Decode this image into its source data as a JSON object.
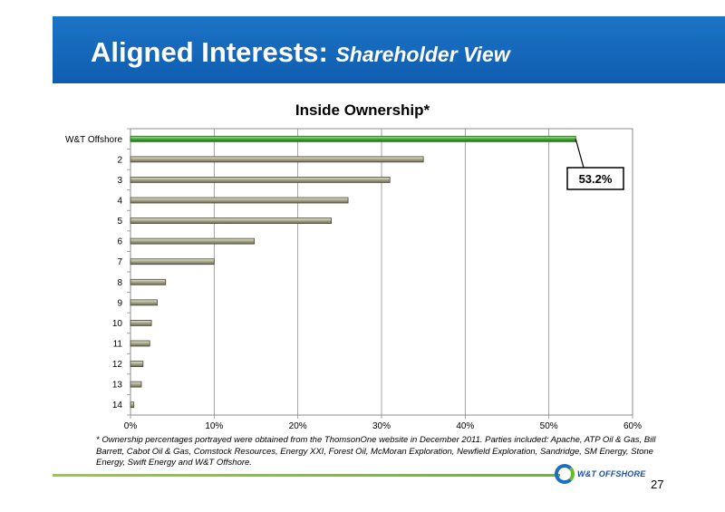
{
  "slide": {
    "title_main": "Aligned Interests:",
    "title_sub": "Shareholder View",
    "footnote": "* Ownership percentages portrayed were obtained from the ThomsonOne website in December 2011. Parties included: Apache, ATP Oil & Gas, Bill Barrett, Cabot Oil & Gas, Comstock Resources, Energy XXI, Forest Oil,  McMoran Exploration, Newfield Exploration, Sandridge, SM Energy, Stone Energy, Swift Energy and W&T Offshore.",
    "logo_text": "W&T OFFSHORE",
    "page_number": "27"
  },
  "chart_data": {
    "type": "bar",
    "orientation": "horizontal",
    "title": "Inside Ownership*",
    "categories": [
      "W&T Offshore",
      "2",
      "3",
      "4",
      "5",
      "6",
      "7",
      "8",
      "9",
      "10",
      "11",
      "12",
      "13",
      "14"
    ],
    "values": [
      53.2,
      35.0,
      31.0,
      26.0,
      24.0,
      14.8,
      10.0,
      4.2,
      3.2,
      2.5,
      2.3,
      1.5,
      1.3,
      0.4
    ],
    "xlim": [
      0,
      60
    ],
    "xticks": [
      "0%",
      "10%",
      "20%",
      "30%",
      "40%",
      "50%",
      "60%"
    ],
    "grid": true,
    "highlight_color": "#4caa3c",
    "bar_color": "#a9a88a",
    "annotation": {
      "category": "W&T Offshore",
      "text": "53.2%"
    }
  }
}
